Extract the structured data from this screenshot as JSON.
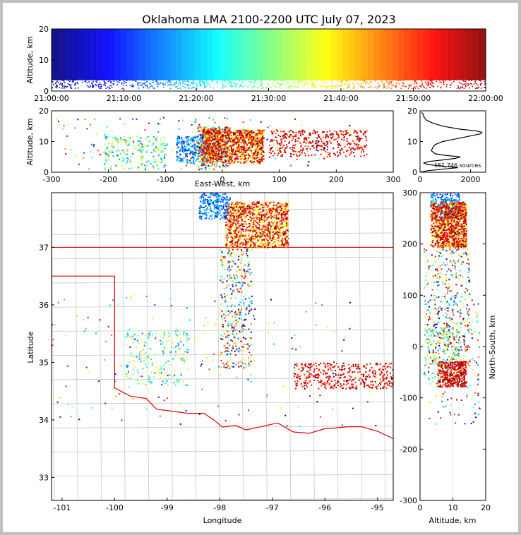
{
  "chart_data": {
    "type": "scatter",
    "title": "Oklahoma LMA 2100-2200 UTC July 07, 2023",
    "color_encoding": "time (jet colormap, 21:00 dark blue to 22:00 dark red)",
    "panels": {
      "time_altitude": {
        "ylabel": "Altitude, km",
        "ylim": [
          0,
          20
        ],
        "yticks": [
          "0",
          "10",
          "20"
        ],
        "xlim": [
          "21:00:00",
          "22:00:00"
        ],
        "xticks": [
          "21:00:00",
          "21:10:00",
          "21:20:00",
          "21:30:00",
          "21:40:00",
          "21:50:00",
          "22:00:00"
        ]
      },
      "ew_altitude": {
        "xlabel": "East-West, km",
        "ylabel": "Altitude, km",
        "xlim": [
          -300,
          300
        ],
        "ylim": [
          0,
          20
        ],
        "xticks": [
          "-300",
          "-200",
          "-100",
          "0",
          "100",
          "200",
          "300"
        ],
        "yticks": [
          "0",
          "10",
          "20"
        ]
      },
      "histogram": {
        "annotation": "151,746 sources",
        "xlim": [
          0,
          2600
        ],
        "ylim": [
          0,
          20
        ],
        "xticks": [
          "0",
          "2000"
        ],
        "yticks": [
          "0",
          "10",
          "20"
        ],
        "profile": [
          [
            0.5,
            300
          ],
          [
            1,
            900
          ],
          [
            1.5,
            1500
          ],
          [
            2,
            900
          ],
          [
            2.5,
            300
          ],
          [
            3,
            150
          ],
          [
            3.5,
            350
          ],
          [
            4,
            900
          ],
          [
            4.5,
            1400
          ],
          [
            5,
            1600
          ],
          [
            5.5,
            1000
          ],
          [
            6,
            600
          ],
          [
            7,
            450
          ],
          [
            8,
            500
          ],
          [
            9,
            600
          ],
          [
            10,
            900
          ],
          [
            11,
            1500
          ],
          [
            12,
            2100
          ],
          [
            12.5,
            2400
          ],
          [
            13,
            2450
          ],
          [
            13.5,
            2200
          ],
          [
            14,
            1600
          ],
          [
            15,
            900
          ],
          [
            16,
            500
          ],
          [
            17,
            250
          ],
          [
            18,
            150
          ],
          [
            19,
            120
          ],
          [
            19.5,
            60
          ]
        ]
      },
      "plan_view": {
        "xlabel": "Longitude",
        "ylabel": "Latitude",
        "xlim": [
          -101.2,
          -94.7
        ],
        "ylim": [
          32.6,
          37.95
        ],
        "xticks": [
          "-101",
          "-100",
          "-99",
          "-98",
          "-97",
          "-96",
          "-95"
        ],
        "yticks": [
          "33",
          "34",
          "35",
          "36",
          "37"
        ]
      },
      "ns_altitude": {
        "xlabel": "Altitude, km",
        "ylabel": "North-South, km",
        "xlim": [
          0,
          20
        ],
        "ylim": [
          -300,
          300
        ],
        "xticks": [
          "0",
          "10",
          "20"
        ],
        "yticks": [
          "-300",
          "-200",
          "-100",
          "0",
          "100",
          "200",
          "300"
        ]
      }
    },
    "source_clusters": [
      {
        "lon": [
          -97.9,
          -96.7
        ],
        "lat": [
          37.0,
          37.8
        ],
        "alt": [
          3,
          14
        ],
        "time_frac": [
          0.55,
          1.0
        ],
        "weight": 0.45
      },
      {
        "lon": [
          -98.4,
          -97.8
        ],
        "lat": [
          37.5,
          37.95
        ],
        "alt": [
          3,
          12
        ],
        "time_frac": [
          0.1,
          0.35
        ],
        "weight": 0.1
      },
      {
        "lon": [
          -96.6,
          -94.7
        ],
        "lat": [
          34.55,
          35.0
        ],
        "alt": [
          5,
          14
        ],
        "time_frac": [
          0.8,
          1.0
        ],
        "weight": 0.15
      },
      {
        "lon": [
          -98.0,
          -97.4
        ],
        "lat": [
          34.9,
          37.0
        ],
        "alt": [
          1,
          15
        ],
        "time_frac": [
          0.0,
          1.0
        ],
        "weight": 0.15
      },
      {
        "lon": [
          -99.8,
          -98.6
        ],
        "lat": [
          34.6,
          35.6
        ],
        "alt": [
          1,
          12
        ],
        "time_frac": [
          0.2,
          0.7
        ],
        "weight": 0.08
      },
      {
        "lon": [
          -101.2,
          -95.0
        ],
        "lat": [
          33.9,
          36.2
        ],
        "alt": [
          1,
          18
        ],
        "time_frac": [
          0.0,
          1.0
        ],
        "weight": 0.07
      }
    ]
  }
}
